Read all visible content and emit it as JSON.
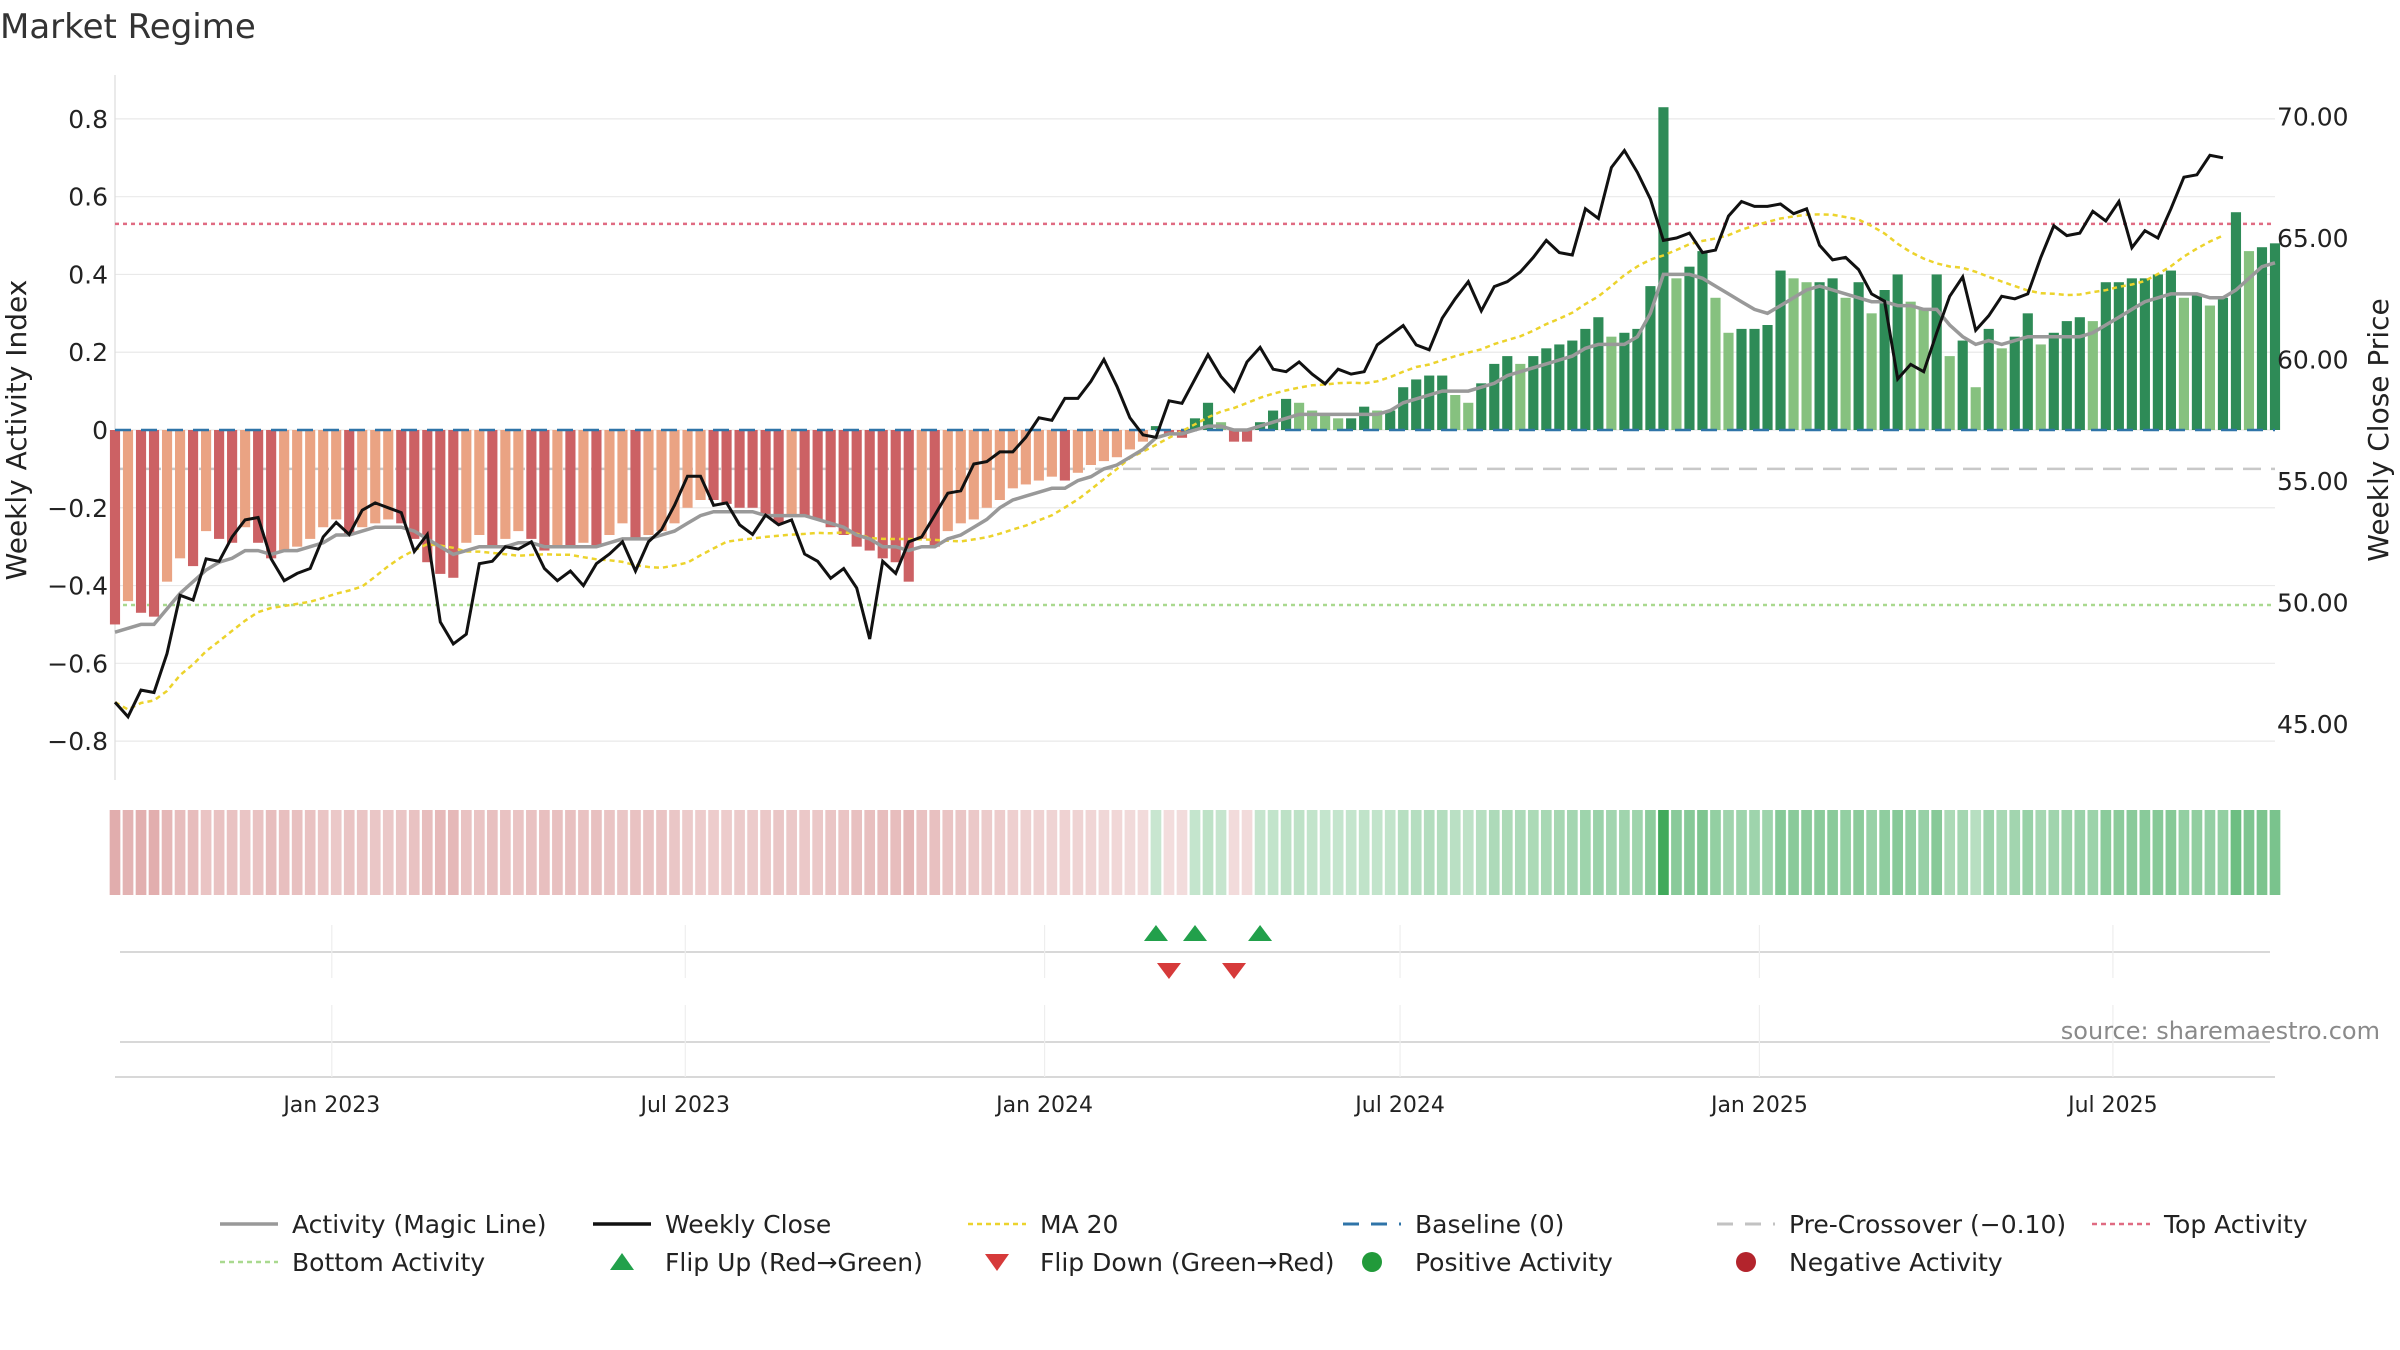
{
  "chart_data": {
    "type": "bar",
    "title": "Market Regime",
    "source_text": "source: sharemaestro.com",
    "left_axis": {
      "label": "Weekly Activity Index",
      "range": [
        -0.9,
        0.9
      ],
      "ticks": [
        -0.8,
        -0.6,
        -0.4,
        -0.2,
        0,
        0.2,
        0.4,
        0.6,
        0.8
      ],
      "tick_labels": [
        "−0.8",
        "−0.6",
        "−0.4",
        "−0.2",
        "0",
        "0.2",
        "0.4",
        "0.6",
        "0.8"
      ]
    },
    "right_axis": {
      "label": "Weekly Close Price",
      "range": [
        42.7,
        71.5
      ],
      "ticks": [
        45,
        50,
        55,
        60,
        65,
        70
      ],
      "tick_labels": [
        "45.00",
        "50.00",
        "55.00",
        "60.00",
        "65.00",
        "70.00"
      ]
    },
    "x_axis": {
      "start_date": "2022-09-12",
      "end_date": "2025-09-22",
      "ticks": [
        "2023-01-01",
        "2023-07-01",
        "2024-01-01",
        "2024-07-01",
        "2025-01-01",
        "2025-07-01"
      ],
      "tick_labels": [
        "Jan 2023",
        "Jul 2023",
        "Jan 2024",
        "Jul 2024",
        "Jan 2025",
        "Jul 2025"
      ]
    },
    "reference_lines": {
      "baseline": 0,
      "pre_crossover": -0.1,
      "top_activity": 0.53,
      "bottom_activity": -0.45
    },
    "activity": [
      -0.5,
      -0.44,
      -0.47,
      -0.48,
      -0.39,
      -0.33,
      -0.35,
      -0.26,
      -0.28,
      -0.29,
      -0.25,
      -0.29,
      -0.33,
      -0.31,
      -0.3,
      -0.28,
      -0.25,
      -0.23,
      -0.27,
      -0.25,
      -0.24,
      -0.23,
      -0.24,
      -0.28,
      -0.34,
      -0.37,
      -0.38,
      -0.29,
      -0.27,
      -0.3,
      -0.28,
      -0.26,
      -0.28,
      -0.31,
      -0.3,
      -0.3,
      -0.29,
      -0.3,
      -0.27,
      -0.24,
      -0.28,
      -0.27,
      -0.26,
      -0.24,
      -0.2,
      -0.18,
      -0.18,
      -0.19,
      -0.2,
      -0.2,
      -0.22,
      -0.24,
      -0.22,
      -0.22,
      -0.23,
      -0.25,
      -0.27,
      -0.3,
      -0.31,
      -0.33,
      -0.34,
      -0.39,
      -0.28,
      -0.3,
      -0.26,
      -0.24,
      -0.23,
      -0.2,
      -0.18,
      -0.15,
      -0.14,
      -0.13,
      -0.12,
      -0.13,
      -0.11,
      -0.09,
      -0.08,
      -0.07,
      -0.05,
      -0.03,
      0.01,
      -0.01,
      -0.02,
      0.03,
      0.07,
      0.02,
      -0.03,
      -0.03,
      0.02,
      0.05,
      0.08,
      0.07,
      0.05,
      0.04,
      0.03,
      0.03,
      0.06,
      0.05,
      0.05,
      0.11,
      0.13,
      0.14,
      0.14,
      0.09,
      0.07,
      0.12,
      0.17,
      0.19,
      0.17,
      0.19,
      0.21,
      0.22,
      0.23,
      0.26,
      0.29,
      0.24,
      0.25,
      0.26,
      0.37,
      0.83,
      0.39,
      0.42,
      0.46,
      0.34,
      0.25,
      0.26,
      0.26,
      0.27,
      0.41,
      0.39,
      0.38,
      0.38,
      0.39,
      0.34,
      0.38,
      0.3,
      0.36,
      0.4,
      0.33,
      0.31,
      0.4,
      0.19,
      0.23,
      0.11,
      0.26,
      0.21,
      0.24,
      0.3,
      0.22,
      0.25,
      0.28,
      0.29,
      0.28,
      0.38,
      0.38,
      0.39,
      0.39,
      0.4,
      0.41,
      0.34,
      0.35,
      0.32,
      0.34,
      0.56,
      0.46,
      0.47,
      0.48
    ],
    "magic_line": [
      -0.52,
      -0.51,
      -0.5,
      -0.5,
      -0.46,
      -0.42,
      -0.39,
      -0.36,
      -0.34,
      -0.33,
      -0.31,
      -0.31,
      -0.32,
      -0.31,
      -0.31,
      -0.3,
      -0.29,
      -0.27,
      -0.27,
      -0.26,
      -0.25,
      -0.25,
      -0.25,
      -0.26,
      -0.28,
      -0.3,
      -0.32,
      -0.31,
      -0.3,
      -0.3,
      -0.3,
      -0.29,
      -0.29,
      -0.3,
      -0.3,
      -0.3,
      -0.3,
      -0.3,
      -0.29,
      -0.28,
      -0.28,
      -0.28,
      -0.27,
      -0.26,
      -0.24,
      -0.22,
      -0.21,
      -0.21,
      -0.21,
      -0.21,
      -0.22,
      -0.22,
      -0.22,
      -0.22,
      -0.23,
      -0.24,
      -0.25,
      -0.27,
      -0.28,
      -0.3,
      -0.3,
      -0.31,
      -0.3,
      -0.3,
      -0.28,
      -0.27,
      -0.25,
      -0.23,
      -0.2,
      -0.18,
      -0.17,
      -0.16,
      -0.15,
      -0.15,
      -0.13,
      -0.12,
      -0.1,
      -0.09,
      -0.07,
      -0.05,
      -0.02,
      -0.01,
      -0.01,
      0.0,
      0.01,
      0.01,
      0.0,
      0.0,
      0.01,
      0.02,
      0.03,
      0.04,
      0.04,
      0.04,
      0.04,
      0.04,
      0.04,
      0.04,
      0.05,
      0.07,
      0.08,
      0.09,
      0.1,
      0.1,
      0.1,
      0.11,
      0.12,
      0.14,
      0.15,
      0.16,
      0.17,
      0.18,
      0.19,
      0.21,
      0.22,
      0.22,
      0.22,
      0.24,
      0.3,
      0.4,
      0.4,
      0.4,
      0.39,
      0.37,
      0.35,
      0.33,
      0.31,
      0.3,
      0.32,
      0.34,
      0.36,
      0.37,
      0.36,
      0.35,
      0.34,
      0.33,
      0.33,
      0.32,
      0.32,
      0.31,
      0.31,
      0.27,
      0.24,
      0.22,
      0.23,
      0.22,
      0.23,
      0.24,
      0.24,
      0.24,
      0.24,
      0.24,
      0.25,
      0.27,
      0.29,
      0.31,
      0.33,
      0.34,
      0.35,
      0.35,
      0.35,
      0.34,
      0.34,
      0.36,
      0.39,
      0.42,
      0.43
    ],
    "weekly_close": [
      45.9,
      45.3,
      46.4,
      46.3,
      47.9,
      50.3,
      50.1,
      51.8,
      51.7,
      52.7,
      53.4,
      53.5,
      51.8,
      50.9,
      51.2,
      51.4,
      52.7,
      53.3,
      52.8,
      53.8,
      54.1,
      53.9,
      53.7,
      52.1,
      52.8,
      49.2,
      48.3,
      48.7,
      51.6,
      51.7,
      52.3,
      52.2,
      52.5,
      51.4,
      50.9,
      51.3,
      50.7,
      51.6,
      52.0,
      52.5,
      51.3,
      52.5,
      53.0,
      54.0,
      55.2,
      55.2,
      54.0,
      54.1,
      53.2,
      52.8,
      53.6,
      53.2,
      53.4,
      52.0,
      51.7,
      51.0,
      51.4,
      50.6,
      48.5,
      51.7,
      51.2,
      52.5,
      52.7,
      53.6,
      54.5,
      54.6,
      55.7,
      55.8,
      56.2,
      56.2,
      56.8,
      57.6,
      57.5,
      58.4,
      58.4,
      59.1,
      60.0,
      58.9,
      57.6,
      56.9,
      56.8,
      58.3,
      58.2,
      59.2,
      60.2,
      59.3,
      58.7,
      59.9,
      60.5,
      59.6,
      59.5,
      59.9,
      59.4,
      59.0,
      59.6,
      59.4,
      59.5,
      60.6,
      61.0,
      61.4,
      60.6,
      60.4,
      61.7,
      62.5,
      63.2,
      62.0,
      63.0,
      63.2,
      63.6,
      64.2,
      64.9,
      64.4,
      64.3,
      66.2,
      65.8,
      67.9,
      68.6,
      67.7,
      66.6,
      64.9,
      65.0,
      65.2,
      64.4,
      64.5,
      65.9,
      66.5,
      66.3,
      66.3,
      66.4,
      66.0,
      66.2,
      64.7,
      64.1,
      64.2,
      63.7,
      62.7,
      62.4,
      59.2,
      59.8,
      59.5,
      61.1,
      62.6,
      63.4,
      61.2,
      61.8,
      62.6,
      62.5,
      62.7,
      64.2,
      65.5,
      65.1,
      65.2,
      66.1,
      65.7,
      66.5,
      64.6,
      65.3,
      65.0,
      66.2,
      67.5,
      67.6,
      68.4,
      68.3
    ]
  },
  "legend": {
    "row1": [
      {
        "label": "Activity (Magic Line)",
        "color": "#999999",
        "symbol": "line"
      },
      {
        "label": "Weekly Close",
        "color": "#111111",
        "symbol": "line"
      },
      {
        "label": "MA 20",
        "color": "#ecd32c",
        "symbol": "dotted"
      },
      {
        "label": "Baseline (0)",
        "color": "#2f74a8",
        "symbol": "dashed"
      },
      {
        "label": "Pre-Crossover (−0.10)",
        "color": "#c2c2c2",
        "symbol": "dashed"
      },
      {
        "label": "Top Activity",
        "color": "#e06b82",
        "symbol": "dotted"
      }
    ],
    "row2": [
      {
        "label": "Bottom Activity",
        "color": "#a9d98f",
        "symbol": "dotted"
      },
      {
        "label": "Flip Up (Red→Green)",
        "color": "#22a04b",
        "symbol": "triangle-up"
      },
      {
        "label": "Flip Down (Green→Red)",
        "color": "#d63a3a",
        "symbol": "triangle-down"
      },
      {
        "label": "Positive Activity",
        "color": "#219a3a",
        "symbol": "circle"
      },
      {
        "label": "Negative Activity",
        "color": "#b3242c",
        "symbol": "circle"
      }
    ]
  },
  "colors": {
    "neg_dark": "#cc6164",
    "neg_light": "#eaa383",
    "pos_dark": "#2e8b57",
    "pos_light": "#86c17f",
    "strip_neg": "#d58b8b",
    "strip_pos": "#41aa5c"
  }
}
